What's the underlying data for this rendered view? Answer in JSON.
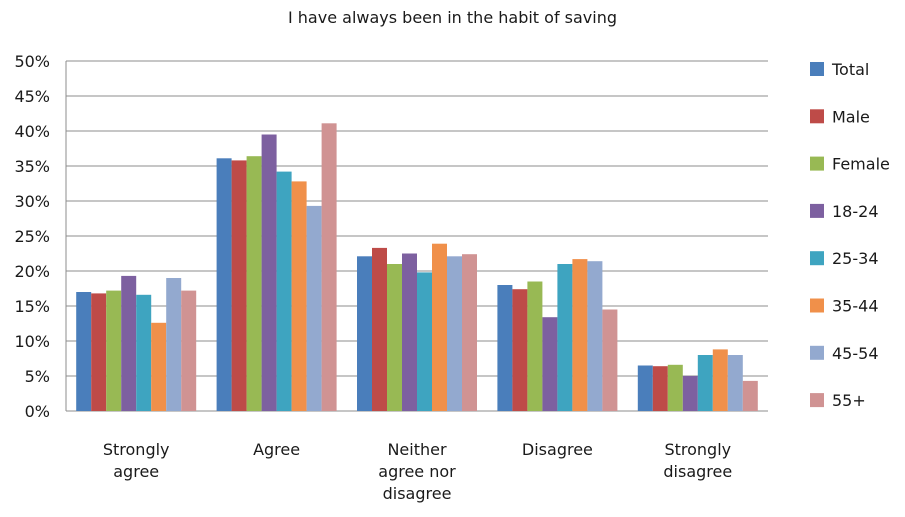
{
  "chart_data": {
    "type": "bar",
    "title": "I have always been in the habit of saving",
    "xlabel": "",
    "ylabel": "",
    "ylim": [
      0,
      0.5
    ],
    "y_ticks": [
      "0%",
      "5%",
      "10%",
      "15%",
      "20%",
      "25%",
      "30%",
      "35%",
      "40%",
      "45%",
      "50%"
    ],
    "grid": true,
    "legend_position": "right",
    "categories": [
      [
        "Strongly",
        "agree"
      ],
      [
        "Agree"
      ],
      [
        "Neither",
        "agree nor",
        "disagree"
      ],
      [
        "Disagree"
      ],
      [
        "Strongly",
        "disagree"
      ]
    ],
    "series": [
      {
        "name": "Total",
        "color": "#4a7ebb",
        "values": [
          0.17,
          0.361,
          0.221,
          0.18,
          0.065
        ]
      },
      {
        "name": "Male",
        "color": "#be4b48",
        "values": [
          0.168,
          0.358,
          0.233,
          0.174,
          0.064
        ]
      },
      {
        "name": "Female",
        "color": "#98b954",
        "values": [
          0.172,
          0.364,
          0.21,
          0.185,
          0.066
        ]
      },
      {
        "name": "18-24",
        "color": "#7d60a0",
        "values": [
          0.193,
          0.395,
          0.225,
          0.134,
          0.05
        ]
      },
      {
        "name": "25-34",
        "color": "#3ea4c0",
        "values": [
          0.166,
          0.342,
          0.198,
          0.21,
          0.08
        ]
      },
      {
        "name": "35-44",
        "color": "#f0904a",
        "values": [
          0.126,
          0.328,
          0.239,
          0.217,
          0.088
        ]
      },
      {
        "name": "45-54",
        "color": "#93a9cf",
        "values": [
          0.19,
          0.293,
          0.221,
          0.214,
          0.08
        ]
      },
      {
        "name": "55+",
        "color": "#d09393",
        "values": [
          0.172,
          0.411,
          0.224,
          0.145,
          0.043
        ]
      }
    ]
  }
}
